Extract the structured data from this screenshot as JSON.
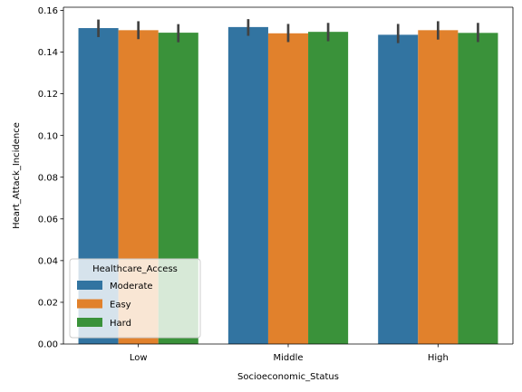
{
  "chart_data": {
    "type": "bar",
    "title": "",
    "xlabel": "Socioeconomic_Status",
    "ylabel": "Heart_Attack_Incidence",
    "categories": [
      "Low",
      "Middle",
      "High"
    ],
    "ylim": [
      0,
      0.1615
    ],
    "yticks": [
      "0.00",
      "0.02",
      "0.04",
      "0.06",
      "0.08",
      "0.10",
      "0.12",
      "0.14",
      "0.16"
    ],
    "grid": false,
    "legend": {
      "title": "Healthcare_Access",
      "placement": "lower-left"
    },
    "series": [
      {
        "name": "Moderate",
        "color": "#3274a1",
        "values": [
          0.1515,
          0.152,
          0.1483
        ],
        "ci": [
          [
            0.1472,
            0.1556
          ],
          [
            0.1478,
            0.1558
          ],
          [
            0.1443,
            0.1535
          ]
        ]
      },
      {
        "name": "Easy",
        "color": "#e1812c",
        "values": [
          0.1505,
          0.149,
          0.1505
        ],
        "ci": [
          [
            0.1462,
            0.1548
          ],
          [
            0.1448,
            0.1535
          ],
          [
            0.146,
            0.1548
          ]
        ]
      },
      {
        "name": "Hard",
        "color": "#3a923a",
        "values": [
          0.1493,
          0.1497,
          0.1492
        ],
        "ci": [
          [
            0.1447,
            0.1534
          ],
          [
            0.1452,
            0.154
          ],
          [
            0.1448,
            0.154
          ]
        ]
      }
    ]
  }
}
